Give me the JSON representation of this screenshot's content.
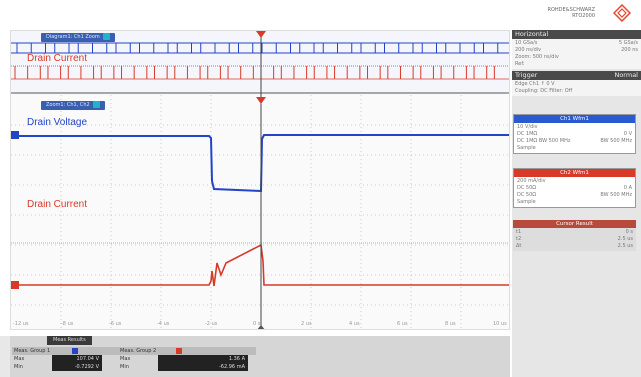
{
  "header": {
    "brand_line1": "ROHDE&SCHWARZ",
    "brand_line2": "RTO2000"
  },
  "zoom_tabs": [
    "Diagram1: Ch1 Zoom",
    "Zoom1: Ch1, Ch2"
  ],
  "traces": {
    "top_label": "Drain Current",
    "drain_voltage": "Drain Voltage",
    "drain_current": "Drain Current"
  },
  "x_ticks": [
    "-12 us",
    "-8 us",
    "-6 us",
    "-4 us",
    "-2 us",
    "0 s",
    "2 us",
    "4 us",
    "6 us",
    "8 us",
    "10 us"
  ],
  "y_ticks_blue": [
    "100 V",
    "75 V",
    "50 V",
    "25 V",
    "0 V"
  ],
  "y_ticks_red": [
    "40 A",
    "20 A",
    "0 A",
    "-20 A"
  ],
  "right_panel": {
    "horizontal": {
      "title": "Horizontal",
      "rows": [
        [
          "10 GSa/s",
          "5 GSa/s"
        ],
        [
          "200 ns/div",
          "200 ns"
        ],
        [
          "Zoom: 500 ns/div",
          ""
        ],
        [
          "Ref:",
          ""
        ]
      ]
    },
    "trigger": {
      "title": "Trigger",
      "mode": "Normal",
      "line1": "Edge  Ch1  ↑  0 V",
      "line2": "Coupling: DC  Filter: Off"
    },
    "ch1": {
      "title": "Ch1 Wfm1",
      "rows": [
        [
          "10 V/div",
          ""
        ],
        [
          "DC 1MΩ",
          "0 V"
        ],
        [
          "DC 1MΩ  BW 500 MHz",
          "BW 500 MHz"
        ],
        [
          "Sample",
          ""
        ]
      ]
    },
    "ch2": {
      "title": "Ch2 Wfm1",
      "rows": [
        [
          "200 mA/div",
          ""
        ],
        [
          "DC 50Ω",
          "0 A"
        ],
        [
          "DC 50Ω",
          "BW 500 MHz"
        ],
        [
          "Sample",
          ""
        ]
      ]
    },
    "cursor": {
      "title": "Cursor Result",
      "rows": [
        [
          "t1",
          "0 s"
        ],
        [
          "t2",
          "2.5 us"
        ],
        [
          "Δt",
          "2.5 us"
        ]
      ]
    }
  },
  "results": {
    "tab": "Meas Results",
    "block1": {
      "title": "Meas. Group 1",
      "rows": [
        [
          "Max",
          "107.04 V"
        ],
        [
          "Min",
          "-0.7292 V"
        ]
      ]
    },
    "block2": {
      "title": "Meas. Group 2",
      "rows": [
        [
          "Max",
          "1.36 A"
        ],
        [
          "Min",
          "-62.96 mA"
        ]
      ]
    }
  },
  "colors": {
    "blue": "#2444c8",
    "red": "#d83a2a",
    "accent": "#e8452c"
  }
}
